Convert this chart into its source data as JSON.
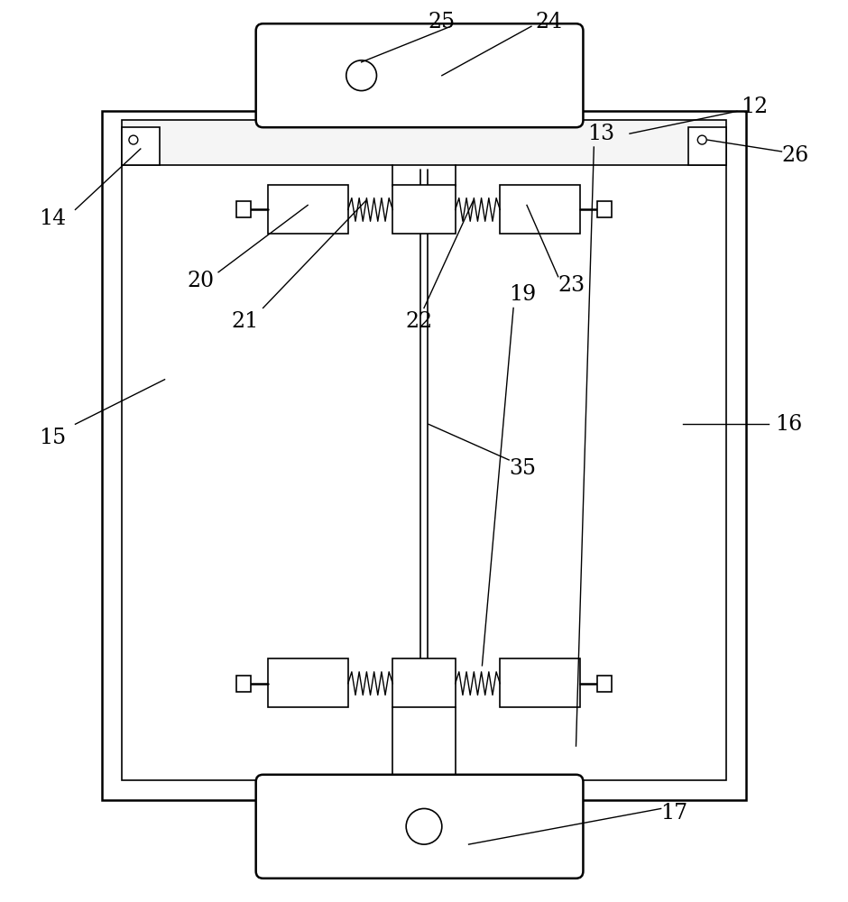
{
  "bg_color": "#ffffff",
  "line_color": "#000000",
  "figsize": [
    9.4,
    10.0
  ],
  "dpi": 100,
  "label_fontsize": 17
}
